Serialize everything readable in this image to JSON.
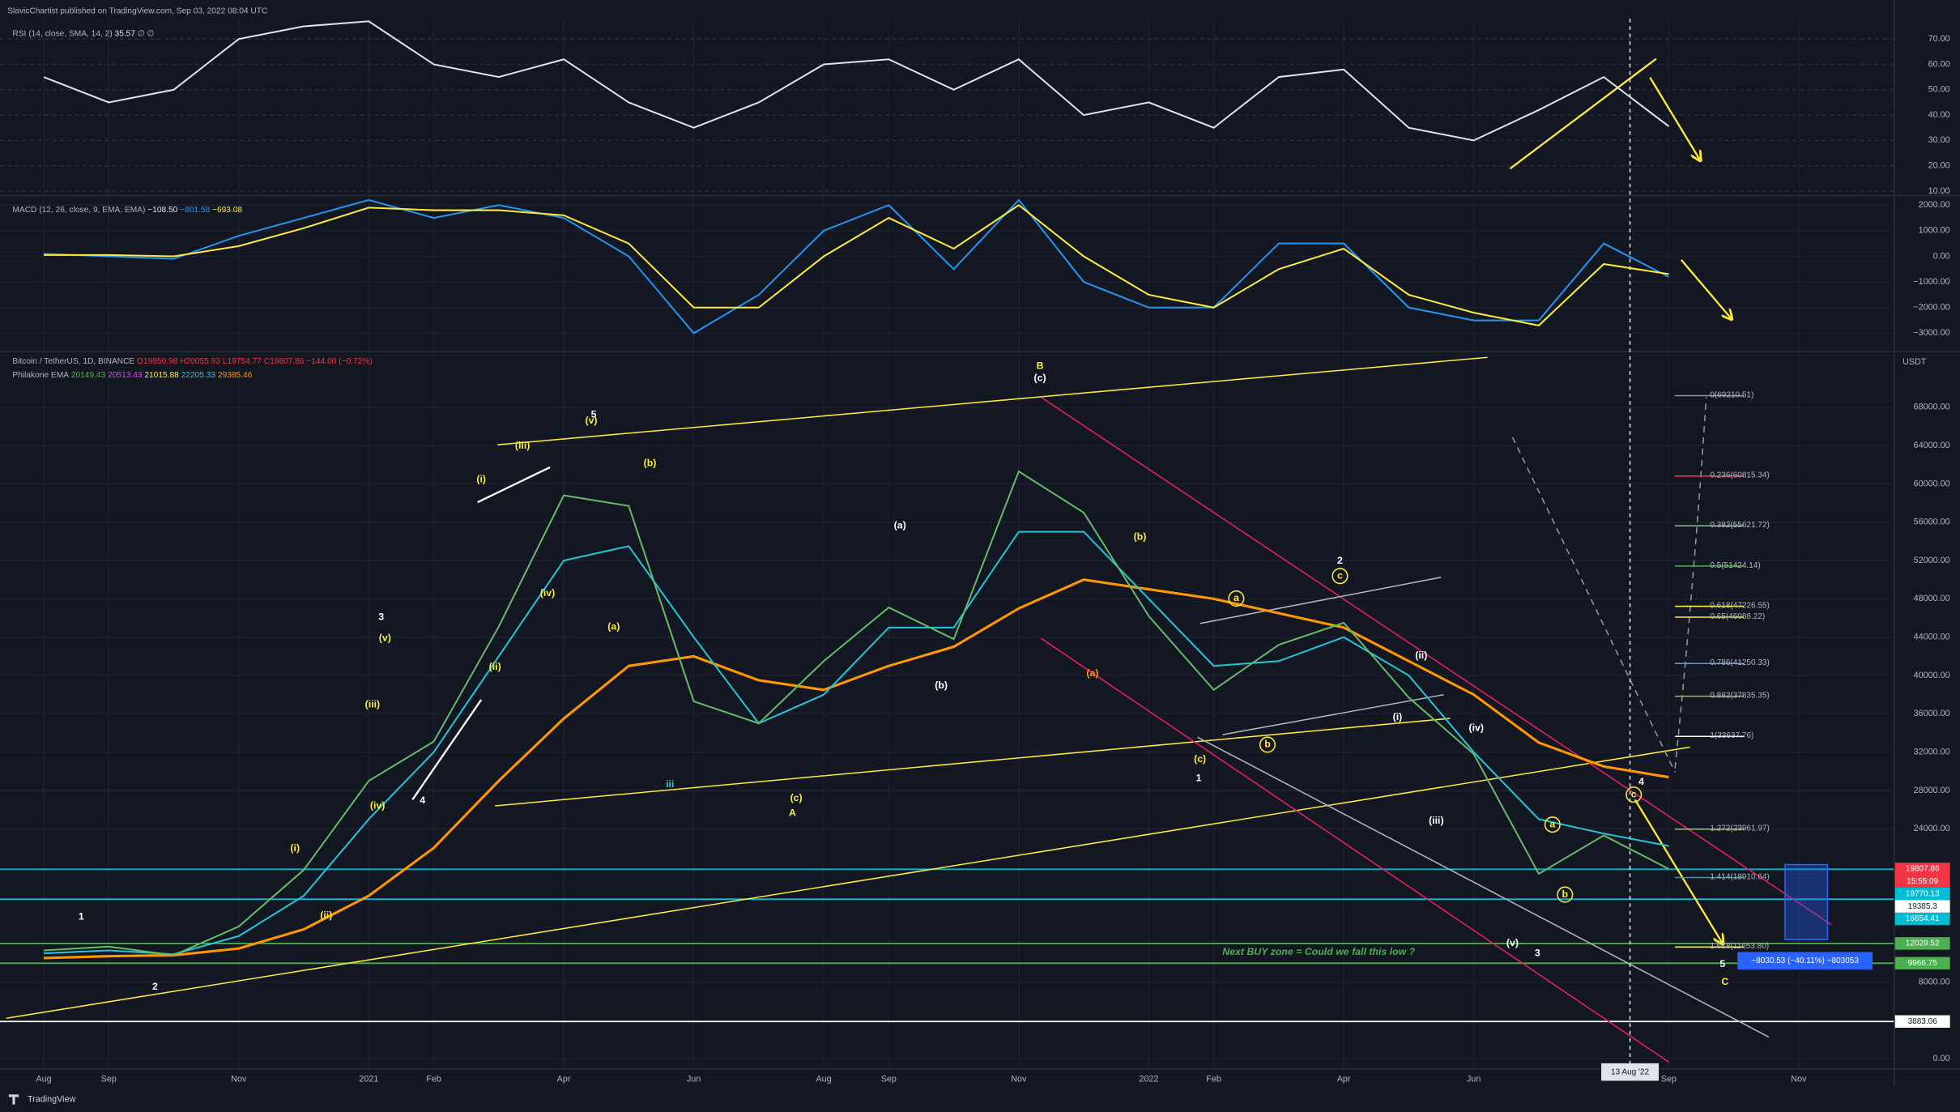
{
  "header": {
    "publisher": "SlavicChartist published on TradingView.com, Sep 03, 2022 08:04 UTC"
  },
  "footer": {
    "brand": "TradingView"
  },
  "chart_data": [
    {
      "type": "line",
      "title": "RSI (14, close, SMA, 14, 2)",
      "last_value": 35.57,
      "extra": "∅ ∅",
      "series": [
        {
          "color": "#e0e3eb",
          "values": [
            55,
            45,
            50,
            70,
            75,
            77,
            60,
            55,
            62,
            45,
            35,
            45,
            60,
            62,
            50,
            62,
            40,
            45,
            35,
            55,
            58,
            35,
            30,
            42,
            55,
            35.57,
            null,
            null,
            null
          ]
        }
      ],
      "ylim": [
        9,
        78
      ],
      "yticks": [
        {
          "value": 70,
          "label": "70.00"
        },
        {
          "value": 60,
          "label": "60.00"
        },
        {
          "value": 50,
          "label": "50.00"
        },
        {
          "value": 40,
          "label": "40.00"
        },
        {
          "value": 30,
          "label": "30.00"
        },
        {
          "value": 20,
          "label": "20.00"
        },
        {
          "value": 10,
          "label": "10.00"
        }
      ],
      "grid": true
    },
    {
      "type": "line",
      "title": "MACD (12, 26, close, 9, EMA, EMA)",
      "value_texts": [
        "−108.50",
        "−801.58",
        "−693.08"
      ],
      "series": [
        {
          "color": "#2196f3",
          "values": [
            100,
            0,
            -100,
            800,
            1500,
            2200,
            1500,
            2000,
            1500,
            0,
            -3000,
            -1500,
            1000,
            2000,
            -500,
            2200,
            -1000,
            -2000,
            -2000,
            500,
            500,
            -2000,
            -2500,
            -2500,
            500,
            -801.58,
            null,
            null,
            null
          ]
        },
        {
          "color": "#ffeb3b",
          "values": [
            50,
            50,
            0,
            400,
            1100,
            1900,
            1800,
            1800,
            1600,
            500,
            -2000,
            -2000,
            0,
            1500,
            300,
            2000,
            0,
            -1500,
            -2000,
            -500,
            300,
            -1500,
            -2200,
            -2700,
            -300,
            -693.08,
            null,
            null,
            null
          ]
        }
      ],
      "ylim": [
        -3650,
        2300
      ],
      "yticks": [
        {
          "value": 2000,
          "label": "2000.00"
        },
        {
          "value": 1000,
          "label": "1000.00"
        },
        {
          "value": 0,
          "label": "0.00"
        },
        {
          "value": -1000,
          "label": "−1000.00"
        },
        {
          "value": -2000,
          "label": "−2000.00"
        },
        {
          "value": -3000,
          "label": "−3000.00"
        }
      ],
      "grid": true
    },
    {
      "type": "line",
      "title": "Bitcoin / TetherUS, 1D, BINANCE",
      "ohlc": [
        "O19950.98",
        "H20055.93",
        "L19754.77",
        "C19807.86",
        "−144.00 (−0.72%)"
      ],
      "indicator": "Philakone EMA",
      "indicator_values": [
        {
          "value": 20149.43,
          "color": "#4caf50"
        },
        {
          "value": 20513.43,
          "color": "#e040fb"
        },
        {
          "value": 21015.88,
          "color": "#ffeb3b"
        },
        {
          "value": 22205.33,
          "color": "#26c6da"
        },
        {
          "value": 29385.46,
          "color": "#ff9800"
        }
      ],
      "y_unit": "USDT",
      "categories": [
        "Aug",
        "Sep",
        null,
        "Nov",
        null,
        "2021",
        "Feb",
        null,
        "Apr",
        null,
        "Jun",
        null,
        "Aug",
        "Sep",
        null,
        "Nov",
        null,
        "2022",
        "Feb",
        null,
        "Apr",
        null,
        "Jun",
        null,
        null,
        "Sep",
        null,
        "Nov",
        null
      ],
      "series": [
        {
          "color": "#ff9800",
          "values": [
            10500,
            10700,
            10800,
            11500,
            13500,
            17000,
            22000,
            29000,
            35500,
            41000,
            42000,
            39500,
            38500,
            41000,
            43000,
            47000,
            50000,
            49000,
            48000,
            46500,
            45000,
            41500,
            38000,
            33000,
            30500,
            29385.46,
            null,
            null,
            null
          ]
        },
        {
          "color": "#26c6da",
          "values": [
            11000,
            11300,
            10900,
            12800,
            17000,
            25000,
            32000,
            42000,
            52000,
            53500,
            44000,
            35000,
            38000,
            45000,
            45000,
            55000,
            55000,
            48000,
            41000,
            41500,
            44000,
            40000,
            32000,
            25000,
            23500,
            22205.33,
            null,
            null,
            null
          ]
        },
        {
          "color": "#66bb6a",
          "values": [
            11300,
            11700,
            10800,
            13800,
            19700,
            29000,
            33100,
            45100,
            58800,
            57700,
            37300,
            35000,
            41500,
            47100,
            43800,
            61300,
            57000,
            46200,
            38500,
            43200,
            45500,
            37700,
            31800,
            19300,
            23300,
            19807.86,
            null,
            null,
            null
          ]
        }
      ],
      "ylim": [
        -1000,
        73600
      ],
      "yticks": [
        {
          "value": 68000,
          "label": "68000.00"
        },
        {
          "value": 64000,
          "label": "64000.00"
        },
        {
          "value": 60000,
          "label": "60000.00"
        },
        {
          "value": 56000,
          "label": "56000.00"
        },
        {
          "value": 52000,
          "label": "52000.00"
        },
        {
          "value": 48000,
          "label": "48000.00"
        },
        {
          "value": 44000,
          "label": "44000.00"
        },
        {
          "value": 40000,
          "label": "40000.00"
        },
        {
          "value": 36000,
          "label": "36000.00"
        },
        {
          "value": 32000,
          "label": "32000.00"
        },
        {
          "value": 28000,
          "label": "28000.00"
        },
        {
          "value": 24000,
          "label": "24000.00"
        },
        {
          "value": 8000,
          "label": "8000.00"
        },
        {
          "value": 0,
          "label": "0.00"
        }
      ],
      "grid": true,
      "fib_levels": [
        {
          "value": 69210.51,
          "label": "0(69210.51)",
          "color": "#9598a1"
        },
        {
          "value": 60815.34,
          "label": "0.236(60815.34)",
          "color": "#f23645"
        },
        {
          "value": 55621.72,
          "label": "0.382(55621.72)",
          "color": "#81c784"
        },
        {
          "value": 51424.14,
          "label": "0.5(51424.14)",
          "color": "#4caf50"
        },
        {
          "value": 47226.55,
          "label": "0.618(47226.55)",
          "color": "#ffeb3b"
        },
        {
          "value": 46088.22,
          "label": "0.65(46088.22)",
          "color": "#ffeb3b"
        },
        {
          "value": 41250.33,
          "label": "0.786(41250.33)",
          "color": "#5d9cec"
        },
        {
          "value": 37835.35,
          "label": "0.882(37835.35)",
          "color": "#8bc34a"
        },
        {
          "value": 33637.76,
          "label": "1(33637.76)",
          "color": "#ffffff"
        },
        {
          "value": 23961.97,
          "label": "1.272(23961.97)",
          "color": "#9ccc65"
        },
        {
          "value": 18910.64,
          "label": "1.414(18910.64)",
          "color": "#26a69a"
        },
        {
          "value": 11653.8,
          "label": "1.618(11653.80)",
          "color": "#ffeb3b"
        }
      ],
      "price_labels": [
        {
          "value": 19807.86,
          "color": "#f23645",
          "line": false
        },
        {
          "value": 19770.13,
          "color": "#00bcd4",
          "line": true
        },
        {
          "value": 19385.3,
          "color": "#ffffff",
          "line": false
        },
        {
          "value": 16654.41,
          "color": "#00bcd4",
          "line": true
        },
        {
          "value": 12029.52,
          "color": "#4caf50",
          "line": true
        },
        {
          "value": 9966.75,
          "color": "#4caf50",
          "line": true
        },
        {
          "value": 3883.06,
          "color": "#ffffff",
          "line": true
        }
      ],
      "countdown": "15:55:09",
      "crosshair_date": "13 Aug '22",
      "zone_note": "Next BUY zone = Could we fall this low ?",
      "measure": "−8030.53 (−40.11%) −803053",
      "annotations": [
        "1",
        "2",
        "3",
        "4",
        "5",
        "(i)",
        "(ii)",
        "(iii)",
        "(iv)",
        "(v)",
        "(i)",
        "(ii)",
        "(iii)",
        "(iv)",
        "(v)",
        "(a)",
        "(b)",
        "(c)",
        "A",
        "(a)",
        "(b)",
        "B",
        "(c)",
        "(b)",
        "(a)",
        "(c)",
        "1",
        "a",
        "b",
        "c",
        "2",
        "(ii)",
        "(i)",
        "(iv)",
        "(iii)",
        "(v)",
        "3",
        "a",
        "b",
        "c",
        "4",
        "5",
        "C",
        "iii"
      ]
    }
  ]
}
